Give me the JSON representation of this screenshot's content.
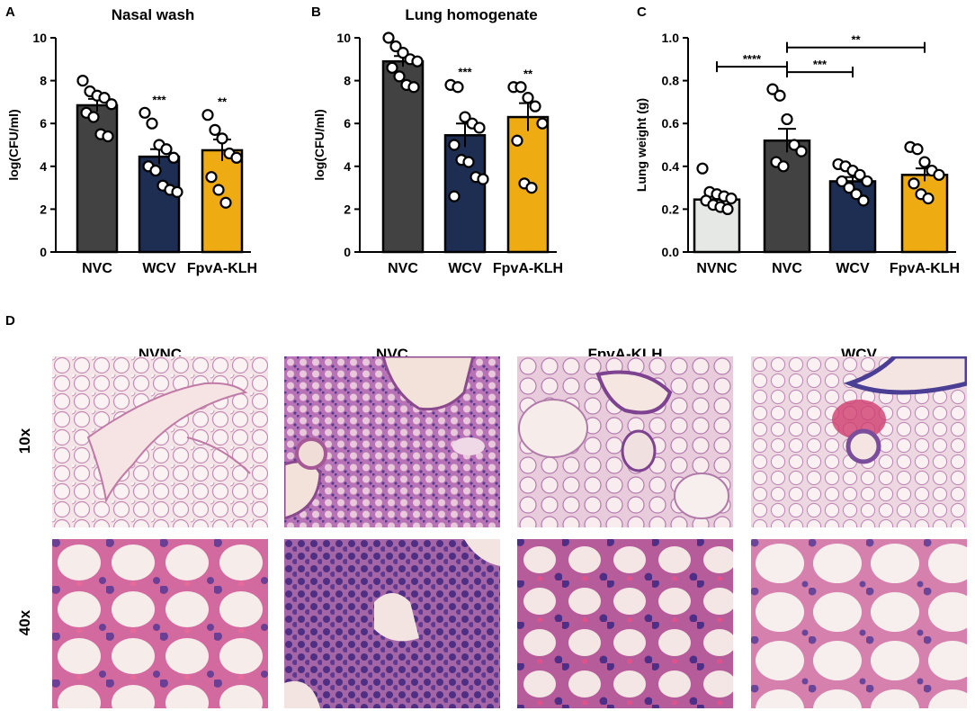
{
  "colors": {
    "NVNC": "#e6e8e6",
    "NVC": "#424242",
    "WCV": "#1d2e52",
    "FpvA-KLH": "#eeab12"
  },
  "chart_data": [
    {
      "panel_label": "A",
      "type": "bar",
      "title": "Nasal wash",
      "ylabel": "log(CFU/ml)",
      "ylim": [
        0,
        10
      ],
      "yticks": [
        0,
        2,
        4,
        6,
        8,
        10
      ],
      "categories": [
        "NVC",
        "WCV",
        "FpvA-KLH"
      ],
      "values": [
        6.85,
        4.45,
        4.75
      ],
      "sem": [
        0.3,
        0.35,
        0.5
      ],
      "significance": [
        "",
        "***",
        "**"
      ],
      "points": [
        [
          8.0,
          7.5,
          7.3,
          7.2,
          6.9,
          6.5,
          6.3,
          5.5,
          5.4
        ],
        [
          6.5,
          6.0,
          5.0,
          4.8,
          4.4,
          4.0,
          3.8,
          3.1,
          2.9,
          2.8
        ],
        [
          6.4,
          5.7,
          5.3,
          4.6,
          4.4,
          3.5,
          2.9,
          2.3
        ]
      ]
    },
    {
      "panel_label": "B",
      "type": "bar",
      "title": "Lung homogenate",
      "ylabel": "log(CFU/ml)",
      "ylim": [
        0,
        10
      ],
      "yticks": [
        0,
        2,
        4,
        6,
        8,
        10
      ],
      "categories": [
        "NVC",
        "WCV",
        "FpvA-KLH"
      ],
      "values": [
        8.9,
        5.45,
        6.3
      ],
      "sem": [
        0.25,
        0.55,
        0.65
      ],
      "significance": [
        "",
        "***",
        "**"
      ],
      "points": [
        [
          10.0,
          9.6,
          9.3,
          9.0,
          8.9,
          8.6,
          8.2,
          7.8,
          7.7
        ],
        [
          7.8,
          7.7,
          6.3,
          6.0,
          5.8,
          5.0,
          4.3,
          4.2,
          3.5,
          3.4,
          2.6
        ],
        [
          7.7,
          7.7,
          7.2,
          6.8,
          6.0,
          5.2,
          3.2,
          3.0
        ]
      ]
    },
    {
      "panel_label": "C",
      "type": "bar",
      "title": "",
      "ylabel": "Lung weight (g)",
      "ylim": [
        0,
        1.0
      ],
      "yticks": [
        "0.0",
        "0.2",
        "0.4",
        "0.6",
        "0.8",
        "1.0"
      ],
      "categories": [
        "NVNC",
        "NVC",
        "WCV",
        "FpvA-KLH"
      ],
      "values": [
        0.245,
        0.52,
        0.33,
        0.36
      ],
      "sem": [
        0.02,
        0.055,
        0.02,
        0.03
      ],
      "points": [
        [
          0.39,
          0.28,
          0.27,
          0.26,
          0.25,
          0.24,
          0.22,
          0.21,
          0.2
        ],
        [
          0.76,
          0.73,
          0.62,
          0.5,
          0.47,
          0.42,
          0.4
        ],
        [
          0.41,
          0.4,
          0.38,
          0.36,
          0.33,
          0.33,
          0.3,
          0.27,
          0.24
        ],
        [
          0.49,
          0.48,
          0.42,
          0.38,
          0.36,
          0.32,
          0.27,
          0.25
        ]
      ],
      "comparisons": [
        {
          "from": 0,
          "to": 1,
          "label": "****",
          "y": 0.865
        },
        {
          "from": 1,
          "to": 3,
          "label": "**",
          "y": 0.955
        },
        {
          "from": 1,
          "to": 2,
          "label": "***",
          "y": 0.84
        }
      ]
    }
  ],
  "histology": {
    "panel_label": "D",
    "columns": [
      "NVNC",
      "NVC",
      "FpvA-KLH",
      "WCV"
    ],
    "rows": [
      "10x",
      "40x"
    ]
  }
}
